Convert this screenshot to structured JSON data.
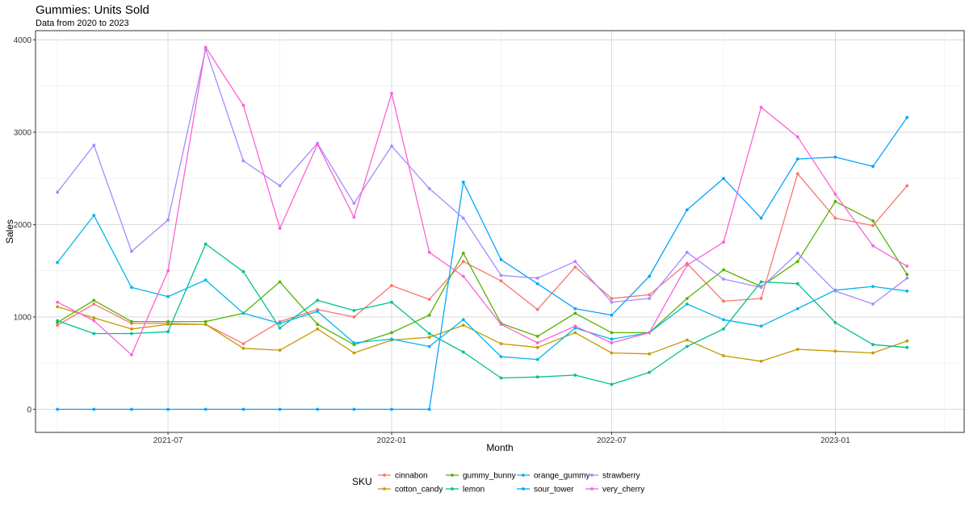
{
  "chart_data": {
    "type": "line",
    "title": "Gummies: Units Sold",
    "subtitle": "Data from 2020 to 2023",
    "xlabel": "Month",
    "ylabel": "Sales",
    "ylim": [
      -250,
      4100
    ],
    "yticks": [
      0,
      1000,
      2000,
      3000,
      4000
    ],
    "xlim": [
      "2021-03-14",
      "2023-04-17"
    ],
    "xticks": [
      {
        "date": "2021-07-01",
        "label": "2021-07"
      },
      {
        "date": "2022-01-01",
        "label": "2022-01"
      },
      {
        "date": "2022-07-01",
        "label": "2022-07"
      },
      {
        "date": "2023-01-01",
        "label": "2023-01"
      }
    ],
    "x": [
      "2021-04-01",
      "2021-05-01",
      "2021-06-01",
      "2021-07-01",
      "2021-08-01",
      "2021-09-01",
      "2021-10-01",
      "2021-11-01",
      "2021-12-01",
      "2022-01-01",
      "2022-02-01",
      "2022-03-01",
      "2022-04-01",
      "2022-05-01",
      "2022-06-01",
      "2022-07-01",
      "2022-08-01",
      "2022-09-01",
      "2022-10-01",
      "2022-11-01",
      "2022-12-01",
      "2023-01-01",
      "2023-02-01",
      "2023-03-01"
    ],
    "grid": true,
    "legend": {
      "title": "SKU",
      "position": "bottom"
    },
    "series": [
      {
        "name": "cinnabon",
        "color": "#F8766D",
        "values": [
          910,
          1140,
          930,
          930,
          920,
          710,
          950,
          1080,
          1000,
          1340,
          1190,
          1600,
          1390,
          1080,
          1540,
          1200,
          1240,
          1580,
          1170,
          1200,
          2550,
          2070,
          1990,
          2420
        ]
      },
      {
        "name": "cotton_candy",
        "color": "#C49A00",
        "values": [
          1110,
          990,
          870,
          920,
          920,
          660,
          640,
          870,
          610,
          750,
          780,
          910,
          710,
          670,
          830,
          610,
          600,
          750,
          580,
          520,
          650,
          630,
          610,
          740
        ]
      },
      {
        "name": "gummy_bunny",
        "color": "#53B400",
        "values": [
          940,
          1180,
          950,
          950,
          950,
          1040,
          1380,
          920,
          700,
          830,
          1020,
          1690,
          930,
          790,
          1040,
          830,
          830,
          1200,
          1510,
          1330,
          1600,
          2250,
          2040,
          1460
        ]
      },
      {
        "name": "lemon",
        "color": "#00C094",
        "values": [
          960,
          820,
          820,
          840,
          1790,
          1490,
          880,
          1180,
          1070,
          1160,
          820,
          620,
          340,
          350,
          370,
          270,
          400,
          680,
          870,
          1380,
          1360,
          940,
          700,
          670
        ]
      },
      {
        "name": "orange_gummy",
        "color": "#00B6EB",
        "values": [
          1590,
          2100,
          1320,
          1220,
          1400,
          1040,
          930,
          1060,
          720,
          760,
          680,
          970,
          570,
          540,
          880,
          760,
          830,
          1140,
          970,
          900,
          1090,
          1290,
          1330,
          1280
        ]
      },
      {
        "name": "sour_tower",
        "color": "#06A4FF",
        "values": [
          0,
          0,
          0,
          0,
          0,
          0,
          0,
          0,
          0,
          0,
          0,
          2460,
          1620,
          1360,
          1090,
          1020,
          1440,
          2160,
          2500,
          2070,
          2710,
          2730,
          2630,
          3160
        ]
      },
      {
        "name": "strawberry",
        "color": "#A58AFF",
        "values": [
          2350,
          2860,
          1710,
          2050,
          3900,
          2690,
          2420,
          2880,
          2230,
          2850,
          2390,
          2070,
          1450,
          1420,
          1600,
          1160,
          1200,
          1700,
          1410,
          1320,
          1690,
          1280,
          1140,
          1420
        ]
      },
      {
        "name": "very_cherry",
        "color": "#FB61D7",
        "values": [
          1160,
          960,
          590,
          1500,
          3920,
          3290,
          1960,
          2870,
          2080,
          3420,
          1700,
          1440,
          920,
          720,
          900,
          720,
          830,
          1560,
          1810,
          3270,
          2950,
          2330,
          1770,
          1550
        ]
      }
    ]
  }
}
